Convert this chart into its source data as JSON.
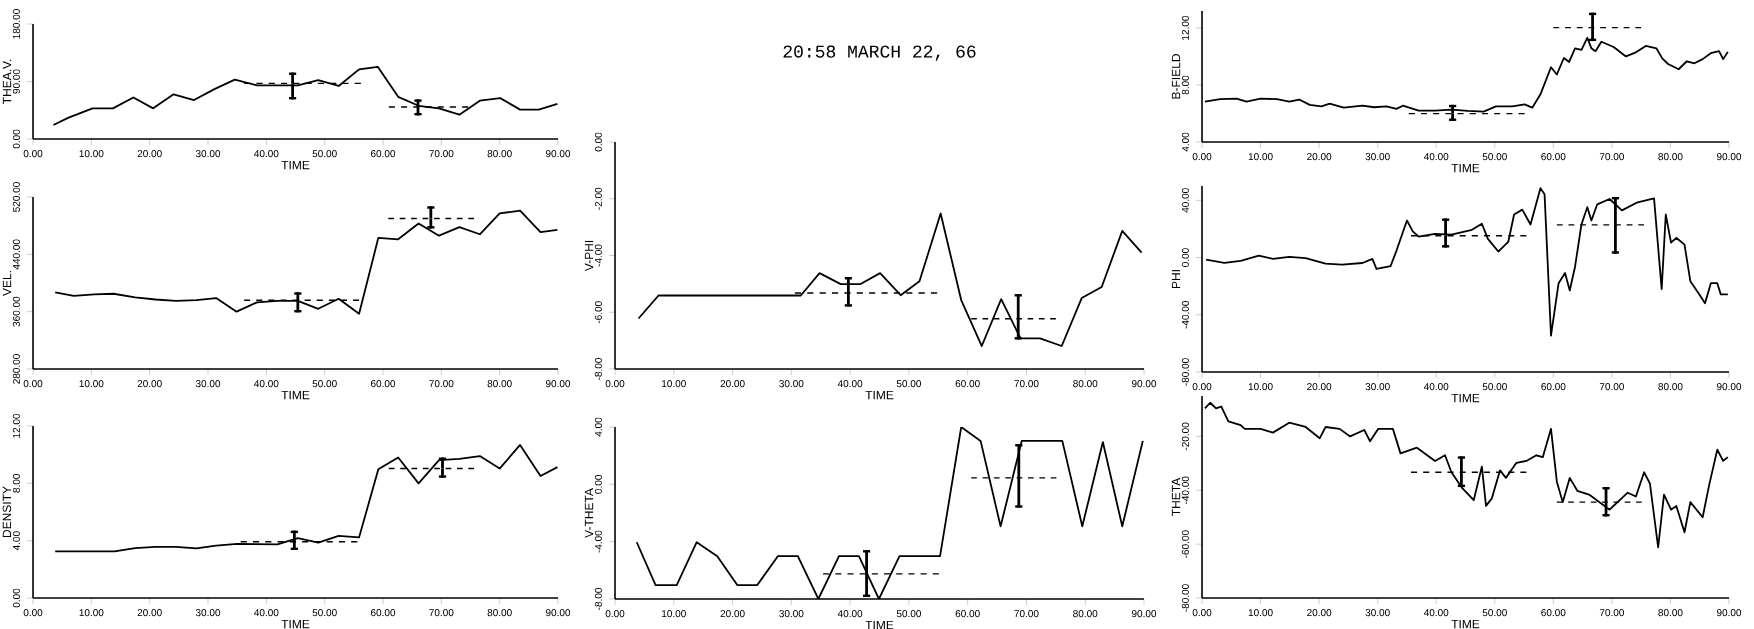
{
  "chart_data": [
    {
      "type": "line",
      "xlabel": "TIME",
      "ylabel": "THEA.V.",
      "xlim": [
        0,
        90
      ],
      "ylim": [
        0,
        180
      ],
      "xticks": [
        {
          "value": 0,
          "label": "0.00"
        },
        {
          "value": 10,
          "label": "10.00"
        },
        {
          "value": 20,
          "label": "20.00"
        },
        {
          "value": 30,
          "label": "30.00"
        },
        {
          "value": 40,
          "label": "40.00"
        },
        {
          "value": 50,
          "label": "50.00"
        },
        {
          "value": 60,
          "label": "60.00"
        },
        {
          "value": 70,
          "label": "70.00"
        },
        {
          "value": 80,
          "label": "80.00"
        },
        {
          "value": 90,
          "label": "90.00"
        }
      ],
      "yticks": [
        {
          "value": 0,
          "label": "0.00"
        },
        {
          "value": 90,
          "label": "90.00"
        },
        {
          "value": 180,
          "label": "180.00"
        }
      ],
      "series": [
        {
          "color": "#000000",
          "x": [
            3.5,
            6.0,
            10.2,
            13.7,
            17.2,
            20.6,
            24.1,
            27.6,
            31.1,
            34.6,
            38.4,
            41.9,
            45.4,
            48.9,
            52.4,
            55.9,
            59.1,
            62.6,
            66.1,
            69.6,
            73.1,
            76.6,
            80.1,
            83.5,
            86.7,
            89.9
          ],
          "values": [
            22,
            33,
            48,
            48,
            65,
            48,
            70,
            61,
            78,
            93,
            84,
            84,
            84,
            92,
            83,
            109,
            113,
            66,
            52,
            48,
            38,
            60,
            64,
            46,
            46,
            55
          ]
        },
        {
          "color": "#000000",
          "line_style": "dashed",
          "x": [
            36.2,
            44.5,
            56.2
          ],
          "values": [
            87,
            87,
            87
          ],
          "errors": [
            null,
            [
              62,
              104
            ],
            null
          ]
        },
        {
          "color": "#000000",
          "line_style": "dashed",
          "x": [
            61,
            66,
            74.6
          ],
          "values": [
            50,
            50,
            50
          ],
          "errors": [
            null,
            [
              37,
              62
            ],
            null
          ]
        }
      ]
    },
    {
      "type": "line",
      "title": "20:58 MARCH 22, 66",
      "xlabel": "TIME",
      "ylabel": "V-PHI",
      "xlim": [
        0,
        90
      ],
      "ylim": [
        -8,
        0
      ],
      "xticks": [
        {
          "value": 0,
          "label": "0.00"
        },
        {
          "value": 10,
          "label": "10.00"
        },
        {
          "value": 20,
          "label": "20.00"
        },
        {
          "value": 30,
          "label": "30.00"
        },
        {
          "value": 40,
          "label": "40.00"
        },
        {
          "value": 50,
          "label": "50.00"
        },
        {
          "value": 60,
          "label": "60.00"
        },
        {
          "value": 70,
          "label": "70.00"
        },
        {
          "value": 80,
          "label": "80.00"
        },
        {
          "value": 90,
          "label": "90.00"
        }
      ],
      "yticks": [
        {
          "value": -8,
          "label": "-8.00"
        },
        {
          "value": -6,
          "label": "-6.00"
        },
        {
          "value": -4,
          "label": "-4.00"
        },
        {
          "value": -2,
          "label": "-2.00"
        },
        {
          "value": 0,
          "label": "0.00"
        }
      ],
      "series": [
        {
          "color": "#000000",
          "x": [
            4.0,
            7.4,
            31.6,
            34.8,
            38.4,
            41.7,
            45.1,
            48.6,
            51.8,
            55.4,
            58.9,
            62.4,
            65.7,
            69.0,
            72.3,
            76.0,
            79.4,
            82.8,
            86.3,
            89.6
          ],
          "values": [
            -6.22,
            -5.41,
            -5.41,
            -4.62,
            -5.01,
            -5.01,
            -4.62,
            -5.4,
            -4.91,
            -2.52,
            -5.57,
            -7.19,
            -5.54,
            -6.92,
            -6.92,
            -7.19,
            -5.5,
            -5.11,
            -3.13,
            -3.9
          ]
        },
        {
          "color": "#000000",
          "line_style": "dashed",
          "x": [
            30.6,
            39.7,
            54.8
          ],
          "values": [
            -5.32,
            -5.32,
            -5.32
          ],
          "errors": [
            null,
            [
              -5.8,
              -4.76
            ],
            null
          ]
        },
        {
          "color": "#000000",
          "line_style": "dashed",
          "x": [
            60.6,
            68.6,
            75.0
          ],
          "values": [
            -6.23,
            -6.23,
            -6.23
          ],
          "errors": [
            null,
            [
              -6.96,
              -5.36
            ],
            null
          ]
        }
      ]
    },
    {
      "type": "line",
      "xlabel": "TIME",
      "ylabel": "B-FIELD",
      "xlim": [
        0,
        90
      ],
      "ylim": [
        4,
        13.2
      ],
      "xticks": [
        {
          "value": 0,
          "label": "0.00"
        },
        {
          "value": 10,
          "label": "10.00"
        },
        {
          "value": 20,
          "label": "20.00"
        },
        {
          "value": 30,
          "label": "30.00"
        },
        {
          "value": 40,
          "label": "40.00"
        },
        {
          "value": 50,
          "label": "50.00"
        },
        {
          "value": 60,
          "label": "60.00"
        },
        {
          "value": 70,
          "label": "70.00"
        },
        {
          "value": 80,
          "label": "80.00"
        },
        {
          "value": 90,
          "label": "90.00"
        }
      ],
      "yticks": [
        {
          "value": 4,
          "label": "4.00"
        },
        {
          "value": 8,
          "label": "8.00"
        },
        {
          "value": 12,
          "label": "12.00"
        }
      ],
      "series": [
        {
          "color": "#000000",
          "x": [
            0.5,
            3.1,
            5.9,
            7.6,
            10.0,
            12.8,
            14.9,
            16.6,
            18.4,
            20.4,
            21.8,
            24.2,
            27.4,
            29.4,
            31.5,
            33.2,
            34.3,
            37.0,
            39.8,
            42.6,
            45.4,
            48.1,
            50.2,
            53.0,
            55.1,
            56.4,
            57.8,
            59.6,
            60.6,
            61.8,
            62.7,
            63.7,
            64.8,
            65.8,
            66.5,
            67.2,
            68.2,
            70.3,
            72.4,
            74.1,
            75.8,
            77.6,
            78.6,
            79.6,
            81.4,
            82.8,
            84.1,
            85.5,
            86.9,
            88.3,
            89.0,
            89.8
          ],
          "values": [
            6.84,
            7.01,
            7.04,
            6.84,
            7.04,
            7.01,
            6.84,
            6.98,
            6.61,
            6.5,
            6.7,
            6.41,
            6.55,
            6.44,
            6.5,
            6.33,
            6.55,
            6.21,
            6.21,
            6.27,
            6.18,
            6.13,
            6.5,
            6.5,
            6.64,
            6.41,
            7.35,
            9.25,
            8.74,
            9.9,
            9.62,
            10.58,
            10.47,
            11.32,
            10.58,
            10.38,
            11.04,
            10.67,
            10.01,
            10.3,
            10.75,
            10.58,
            9.87,
            9.48,
            9.11,
            9.67,
            9.53,
            9.82,
            10.24,
            10.38,
            9.82,
            10.33
          ]
        },
        {
          "color": "#000000",
          "line_style": "dashed",
          "x": [
            35.3,
            42.8,
            55.1
          ],
          "values": [
            5.99,
            5.99,
            5.99
          ],
          "errors": [
            null,
            [
              5.48,
              6.61
            ],
            null
          ]
        },
        {
          "color": "#000000",
          "line_style": "dashed",
          "x": [
            60.0,
            66.7,
            75.0
          ],
          "values": [
            12.03,
            12.03,
            12.03
          ],
          "errors": [
            null,
            [
              11.09,
              13.08
            ],
            null
          ]
        }
      ]
    },
    {
      "type": "line",
      "xlabel": "TIME",
      "ylabel": "VEL.",
      "xlim": [
        0,
        90
      ],
      "ylim": [
        280,
        520
      ],
      "xticks": [
        {
          "value": 0,
          "label": "0.00"
        },
        {
          "value": 10,
          "label": "10.00"
        },
        {
          "value": 20,
          "label": "20.00"
        },
        {
          "value": 30,
          "label": "30.00"
        },
        {
          "value": 40,
          "label": "40.00"
        },
        {
          "value": 50,
          "label": "50.00"
        },
        {
          "value": 60,
          "label": "60.00"
        },
        {
          "value": 70,
          "label": "70.00"
        },
        {
          "value": 80,
          "label": "80.00"
        },
        {
          "value": 90,
          "label": "90.00"
        }
      ],
      "yticks": [
        {
          "value": 280,
          "label": "280.00"
        },
        {
          "value": 360,
          "label": "360.00"
        },
        {
          "value": 440,
          "label": "440.00"
        },
        {
          "value": 520,
          "label": "520.00"
        }
      ],
      "series": [
        {
          "color": "#000000",
          "x": [
            3.8,
            7.0,
            10.5,
            13.8,
            17.5,
            21.0,
            24.5,
            28.0,
            31.4,
            34.9,
            38.4,
            41.9,
            45.4,
            48.9,
            52.4,
            55.9,
            59.2,
            62.6,
            66.1,
            69.6,
            73.1,
            76.6,
            80.0,
            83.5,
            87.0,
            89.9
          ],
          "values": [
            387,
            382,
            384,
            385,
            380,
            377,
            375,
            376,
            379,
            360,
            373,
            375,
            375,
            364,
            378,
            357,
            463,
            461,
            483,
            466,
            478,
            468,
            497,
            501,
            471,
            474
          ]
        },
        {
          "color": "#000000",
          "line_style": "dashed",
          "x": [
            36.2,
            45.4,
            55.9
          ],
          "values": [
            376,
            376,
            376
          ],
          "errors": [
            null,
            [
              359,
              387
            ],
            null
          ]
        },
        {
          "color": "#000000",
          "line_style": "dashed",
          "x": [
            60.9,
            68.2,
            75.6
          ],
          "values": [
            490,
            490,
            490
          ],
          "errors": [
            null,
            [
              476,
              507
            ],
            null
          ]
        }
      ]
    },
    {
      "type": "line",
      "xlabel": "TIME",
      "ylabel": "PHI",
      "xlim": [
        0,
        90
      ],
      "ylim": [
        -80,
        50
      ],
      "xticks": [
        {
          "value": 0,
          "label": "0.00"
        },
        {
          "value": 10,
          "label": "10.00"
        },
        {
          "value": 20,
          "label": "20.00"
        },
        {
          "value": 30,
          "label": "30.00"
        },
        {
          "value": 40,
          "label": "40.00"
        },
        {
          "value": 50,
          "label": "50.00"
        },
        {
          "value": 60,
          "label": "60.00"
        },
        {
          "value": 70,
          "label": "70.00"
        },
        {
          "value": 80,
          "label": "80.00"
        },
        {
          "value": 90,
          "label": "90.00"
        }
      ],
      "yticks": [
        {
          "value": -80,
          "label": "-80.00"
        },
        {
          "value": -40,
          "label": "-40.00"
        },
        {
          "value": 0,
          "label": "0.00"
        },
        {
          "value": 40,
          "label": "40.00"
        }
      ],
      "series": [
        {
          "color": "#000000",
          "x": [
            0.7,
            3.8,
            6.6,
            9.7,
            12.1,
            14.9,
            17.7,
            21.1,
            23.9,
            27.4,
            29.1,
            29.8,
            32.2,
            33.2,
            35.0,
            36.0,
            37.0,
            39.8,
            42.6,
            46.1,
            47.8,
            48.8,
            50.6,
            52.3,
            53.3,
            54.7,
            56.1,
            57.8,
            58.5,
            59.6,
            60.9,
            62.0,
            62.8,
            63.7,
            64.8,
            65.8,
            66.5,
            67.5,
            69.6,
            71.7,
            74.4,
            77.2,
            78.5,
            79.2,
            80.1,
            81.0,
            82.4,
            83.4,
            84.8,
            85.9,
            86.9,
            88.0,
            88.6,
            89.8
          ],
          "values": [
            -1.5,
            -3.8,
            -2.3,
            1.3,
            -0.9,
            0.5,
            -0.4,
            -4.3,
            -4.9,
            -3.8,
            -0.9,
            -8.0,
            -6.0,
            4.7,
            25.9,
            18.3,
            14.6,
            16.6,
            16.0,
            19.4,
            23.6,
            13.2,
            4.2,
            10.9,
            30.1,
            33.5,
            23.1,
            48.5,
            44.3,
            -54.6,
            -17.9,
            -10.8,
            -23.0,
            -6.6,
            23.1,
            35.2,
            25.9,
            37.2,
            40.9,
            33.0,
            38.6,
            41.4,
            -22.1,
            30.1,
            10.4,
            13.8,
            9.0,
            -16.5,
            -24.9,
            -32.0,
            -17.9,
            -17.9,
            -25.8,
            -25.8
          ]
        },
        {
          "color": "#000000",
          "line_style": "dashed",
          "x": [
            35.7,
            41.6,
            55.4
          ],
          "values": [
            15.2,
            15.2,
            15.2
          ],
          "errors": [
            null,
            [
              7.0,
              27.3
            ],
            null
          ]
        },
        {
          "color": "#000000",
          "line_style": "dashed",
          "x": [
            60.6,
            70.6,
            75.5
          ],
          "values": [
            22.8,
            22.8,
            22.8
          ],
          "errors": [
            null,
            [
              2.7,
              42.3
            ],
            null
          ]
        }
      ]
    },
    {
      "type": "line",
      "xlabel": "TIME",
      "ylabel": "DENSITY",
      "xlim": [
        0,
        90
      ],
      "ylim": [
        0,
        12
      ],
      "xticks": [
        {
          "value": 0,
          "label": "0.00"
        },
        {
          "value": 10,
          "label": "10.00"
        },
        {
          "value": 20,
          "label": "20.00"
        },
        {
          "value": 30,
          "label": "30.00"
        },
        {
          "value": 40,
          "label": "40.00"
        },
        {
          "value": 50,
          "label": "50.00"
        },
        {
          "value": 60,
          "label": "60.00"
        },
        {
          "value": 70,
          "label": "70.00"
        },
        {
          "value": 80,
          "label": "80.00"
        },
        {
          "value": 90,
          "label": "90.00"
        }
      ],
      "yticks": [
        {
          "value": 0,
          "label": "0.00"
        },
        {
          "value": 4,
          "label": "4.00"
        },
        {
          "value": 8,
          "label": "8.00"
        },
        {
          "value": 12,
          "label": "12.00"
        }
      ],
      "series": [
        {
          "color": "#000000",
          "x": [
            3.8,
            14.0,
            17.5,
            21.0,
            24.5,
            28.0,
            31.4,
            35.0,
            41.9,
            45.4,
            48.9,
            52.4,
            55.9,
            59.2,
            62.6,
            66.1,
            69.6,
            73.1,
            76.6,
            80.0,
            83.5,
            87.0,
            89.9
          ],
          "values": [
            3.25,
            3.25,
            3.48,
            3.56,
            3.56,
            3.46,
            3.66,
            3.77,
            3.74,
            4.18,
            3.87,
            4.33,
            4.23,
            8.98,
            9.8,
            8.0,
            9.62,
            9.7,
            9.9,
            9.03,
            10.68,
            8.51,
            9.13
          ]
        },
        {
          "color": "#000000",
          "line_style": "dashed",
          "x": [
            35.6,
            44.8,
            55.6
          ],
          "values": [
            3.92,
            3.92,
            3.92
          ],
          "errors": [
            null,
            [
              3.35,
              4.7
            ],
            null
          ]
        },
        {
          "color": "#000000",
          "line_style": "dashed",
          "x": [
            61.0,
            70.2,
            75.6
          ],
          "values": [
            9.03,
            9.03,
            9.03
          ],
          "errors": [
            null,
            [
              8.39,
              9.8
            ],
            null
          ]
        }
      ]
    },
    {
      "type": "line",
      "xlabel": "TIME",
      "ylabel": "V-THETA",
      "xlim": [
        0,
        90
      ],
      "ylim": [
        -8,
        4
      ],
      "xticks": [
        {
          "value": 0,
          "label": "0.00"
        },
        {
          "value": 10,
          "label": "10.00"
        },
        {
          "value": 20,
          "label": "20.00"
        },
        {
          "value": 30,
          "label": "30.00"
        },
        {
          "value": 40,
          "label": "40.00"
        },
        {
          "value": 50,
          "label": "50.00"
        },
        {
          "value": 60,
          "label": "60.00"
        },
        {
          "value": 70,
          "label": "70.00"
        },
        {
          "value": 80,
          "label": "80.00"
        },
        {
          "value": 90,
          "label": "90.00"
        }
      ],
      "yticks": [
        {
          "value": -8,
          "label": "-8.00"
        },
        {
          "value": -4,
          "label": "-4.00"
        },
        {
          "value": 0,
          "label": "0.00"
        },
        {
          "value": 4,
          "label": "4.00"
        }
      ],
      "series": [
        {
          "color": "#000000",
          "x": [
            3.7,
            6.9,
            10.5,
            13.9,
            17.4,
            20.8,
            24.2,
            27.7,
            31.1,
            34.6,
            38.1,
            41.5,
            44.9,
            48.4,
            55.3,
            58.9,
            62.2,
            65.6,
            69.2,
            76.1,
            79.5,
            83.0,
            86.3,
            89.8
          ],
          "values": [
            -4.04,
            -7.03,
            -7.03,
            -4.04,
            -5.01,
            -7.03,
            -7.03,
            -5.01,
            -5.01,
            -8.0,
            -5.01,
            -5.01,
            -8.0,
            -5.01,
            -5.01,
            4.0,
            3.03,
            -2.93,
            3.03,
            3.03,
            -2.93,
            2.95,
            -2.93,
            3.03
          ]
        },
        {
          "color": "#000000",
          "line_style": "dashed",
          "x": [
            35.4,
            42.8,
            55.1
          ],
          "values": [
            -6.25,
            -6.25,
            -6.25
          ],
          "errors": [
            null,
            [
              -7.86,
              -4.59
            ],
            null
          ]
        },
        {
          "color": "#000000",
          "line_style": "dashed",
          "x": [
            60.6,
            68.7,
            75.1
          ],
          "values": [
            0.45,
            0.45,
            0.45
          ],
          "errors": [
            null,
            [
              -1.63,
              2.81
            ],
            null
          ]
        }
      ]
    },
    {
      "type": "line",
      "xlabel": "TIME",
      "ylabel": "THETA",
      "xlim": [
        0,
        90
      ],
      "ylim": [
        -80,
        -5
      ],
      "xticks": [
        {
          "value": 0,
          "label": "0.00"
        },
        {
          "value": 10,
          "label": "10.00"
        },
        {
          "value": 20,
          "label": "20.00"
        },
        {
          "value": 30,
          "label": "30.00"
        },
        {
          "value": 40,
          "label": "40.00"
        },
        {
          "value": 50,
          "label": "50.00"
        },
        {
          "value": 60,
          "label": "60.00"
        },
        {
          "value": 70,
          "label": "70.00"
        },
        {
          "value": 80,
          "label": "80.00"
        },
        {
          "value": 90,
          "label": "90.00"
        }
      ],
      "yticks": [
        {
          "value": -80,
          "label": "-80.00"
        },
        {
          "value": -60,
          "label": "-60.00"
        },
        {
          "value": -40,
          "label": "-40.00"
        },
        {
          "value": -20,
          "label": "-20.00"
        }
      ],
      "series": [
        {
          "color": "#000000",
          "x": [
            0.5,
            1.4,
            2.4,
            3.3,
            4.5,
            6.6,
            7.3,
            10.0,
            12.1,
            14.9,
            17.7,
            20.1,
            21.1,
            23.5,
            25.3,
            27.7,
            28.7,
            30.1,
            32.6,
            33.9,
            36.7,
            39.8,
            41.5,
            42.6,
            44.3,
            46.4,
            47.8,
            48.5,
            49.5,
            50.9,
            51.9,
            53.7,
            55.4,
            57.1,
            58.2,
            59.6,
            60.6,
            61.6,
            62.8,
            64.1,
            66.1,
            69.6,
            72.7,
            74.1,
            75.5,
            76.5,
            77.9,
            78.9,
            80.1,
            81.0,
            82.4,
            83.4,
            85.5,
            86.6,
            88.0,
            89.0,
            89.8
          ],
          "values": [
            -9.6,
            -7.5,
            -9.6,
            -8.9,
            -14.4,
            -15.8,
            -17.2,
            -17.2,
            -18.6,
            -14.9,
            -16.5,
            -20.7,
            -16.5,
            -17.2,
            -20.0,
            -17.6,
            -21.8,
            -17.2,
            -17.2,
            -26.3,
            -24.2,
            -29.1,
            -27.0,
            -33.3,
            -38.8,
            -43.7,
            -31.2,
            -45.8,
            -43.0,
            -32.6,
            -35.4,
            -29.8,
            -29.1,
            -27.0,
            -27.7,
            -17.2,
            -36.8,
            -44.4,
            -35.4,
            -40.2,
            -41.6,
            -47.2,
            -40.9,
            -42.3,
            -33.3,
            -37.5,
            -61.2,
            -41.6,
            -47.2,
            -45.8,
            -55.6,
            -44.4,
            -50.0,
            -38.2,
            -24.9,
            -29.1,
            -27.7
          ]
        },
        {
          "color": "#000000",
          "line_style": "dashed",
          "x": [
            35.7,
            44.3,
            55.4
          ],
          "values": [
            -33.3,
            -33.3,
            -33.3
          ],
          "errors": [
            null,
            [
              -38.8,
              -27.4
            ],
            null
          ]
        },
        {
          "color": "#000000",
          "line_style": "dashed",
          "x": [
            60.6,
            69.0,
            75.1
          ],
          "values": [
            -44.4,
            -44.4,
            -44.4
          ],
          "errors": [
            null,
            [
              -49.7,
              -38.8
            ],
            null
          ]
        }
      ]
    }
  ]
}
